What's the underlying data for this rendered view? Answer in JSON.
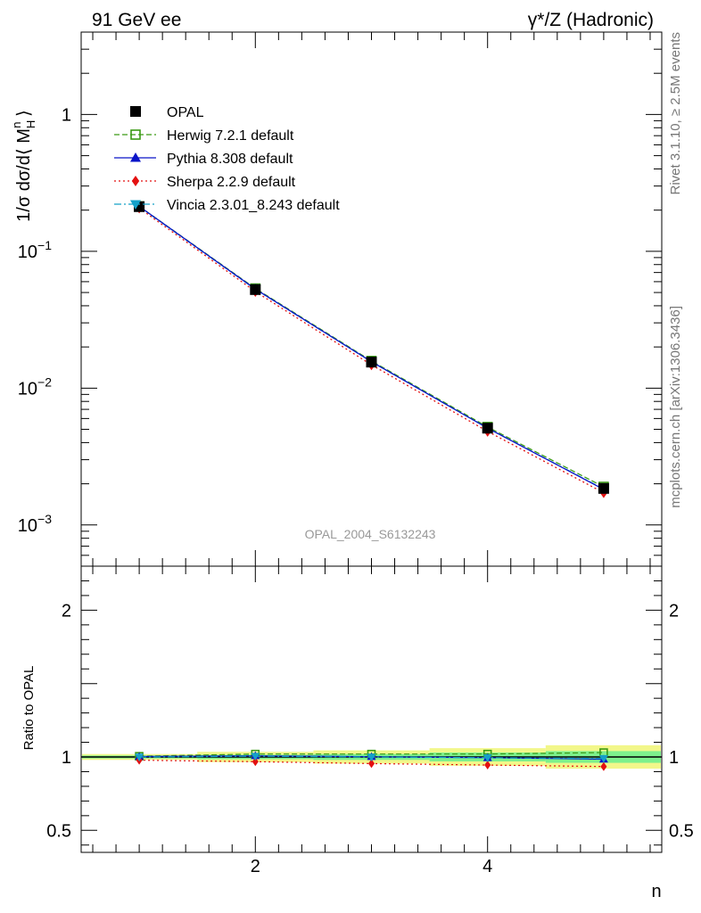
{
  "header": {
    "left_title": "91 GeV ee",
    "right_title": "γ*/Z (Hadronic)"
  },
  "side": {
    "rivet": "Rivet 3.1.10, ≥ 2.5M events",
    "mcplots": "mcplots.cern.ch [arXiv:1306.3436]"
  },
  "watermark": "OPAL_2004_S6132243",
  "chart_data": [
    {
      "type": "line",
      "panel": "main",
      "ylabel": "1/σ dσ/d⟨ M_H^n ⟩",
      "yscale": "log",
      "xlim": [
        0.5,
        5.5
      ],
      "ylim": [
        0.0005,
        4
      ],
      "yticks": [
        {
          "value": 1,
          "label": "1"
        },
        {
          "value": 0.1,
          "label": "10",
          "exp": "−1"
        },
        {
          "value": 0.01,
          "label": "10",
          "exp": "−2"
        },
        {
          "value": 0.001,
          "label": "10",
          "exp": "−3"
        }
      ],
      "x": [
        1,
        2,
        3,
        4,
        5
      ],
      "series": [
        {
          "name": "OPAL",
          "color": "#000000",
          "marker": "square-filled",
          "line": "none",
          "values": [
            0.212,
            0.0525,
            0.0155,
            0.0051,
            0.00185
          ]
        },
        {
          "name": "Herwig 7.2.1 default",
          "color": "#3a9a14",
          "marker": "square-open",
          "line": "dashed",
          "values": [
            0.213,
            0.0535,
            0.0158,
            0.0052,
            0.0019
          ]
        },
        {
          "name": "Pythia 8.308 default",
          "color": "#0a14c8",
          "marker": "triangle-up",
          "line": "solid",
          "values": [
            0.213,
            0.053,
            0.0156,
            0.0051,
            0.00182
          ]
        },
        {
          "name": "Sherpa 2.2.9 default",
          "color": "#e41010",
          "marker": "diamond",
          "line": "dotted",
          "values": [
            0.207,
            0.0508,
            0.0148,
            0.00483,
            0.00172
          ]
        },
        {
          "name": "Vincia 2.3.01_8.243 default",
          "color": "#14a0c8",
          "marker": "triangle-down",
          "line": "dashdot",
          "values": [
            0.212,
            0.0528,
            0.0156,
            0.0051,
            0.00183
          ]
        }
      ]
    },
    {
      "type": "line",
      "panel": "ratio",
      "ylabel": "Ratio to OPAL",
      "xlabel": "n",
      "xlim": [
        0.5,
        5.5
      ],
      "ylim": [
        0.35,
        2.3
      ],
      "xticks": [
        2,
        4
      ],
      "yticks": [
        {
          "value": 2,
          "label": "2"
        },
        {
          "value": 1,
          "label": "1"
        },
        {
          "value": 0.5,
          "label": "0.5"
        }
      ],
      "x": [
        1,
        2,
        3,
        4,
        5
      ],
      "bands": {
        "stat": {
          "color": "#7df08c",
          "halfwidth": [
            0.01,
            0.015,
            0.02,
            0.03,
            0.04
          ]
        },
        "total": {
          "color": "#f2f78a",
          "halfwidth": [
            0.02,
            0.035,
            0.045,
            0.06,
            0.08
          ]
        }
      },
      "series": [
        {
          "name": "Herwig 7.2.1 default",
          "values": [
            1.005,
            1.02,
            1.02,
            1.02,
            1.03
          ]
        },
        {
          "name": "Pythia 8.308 default",
          "values": [
            1.003,
            1.008,
            1.002,
            0.995,
            0.985
          ]
        },
        {
          "name": "Sherpa 2.2.9 default",
          "values": [
            0.978,
            0.968,
            0.955,
            0.945,
            0.935
          ]
        },
        {
          "name": "Vincia 2.3.01_8.243 default",
          "values": [
            1.0,
            1.005,
            1.0,
            0.995,
            0.99
          ]
        }
      ]
    }
  ]
}
